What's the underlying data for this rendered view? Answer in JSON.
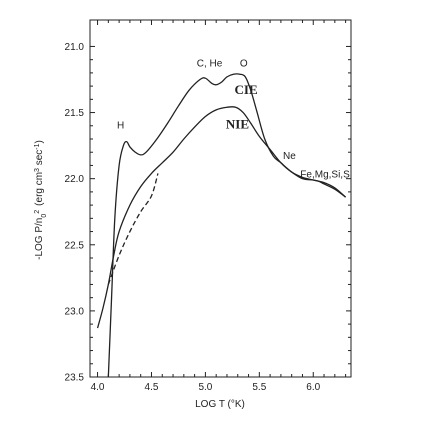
{
  "chart_data": {
    "type": "line",
    "title": "",
    "xlabel": "LOG T (°K)",
    "ylabel": "-LOG P/n",
    "ylabel_sub": "0",
    "ylabel_sup": "2",
    "ylabel_units": "(erg cm",
    "ylabel_units_sup1": "3",
    "ylabel_units_mid": " sec",
    "ylabel_units_sup2": "-1",
    "ylabel_units_end": ")",
    "xlim": [
      3.93,
      6.35
    ],
    "ylim": [
      23.5,
      20.8
    ],
    "y_inverted": true,
    "grid": false,
    "x_ticks": [
      "4.0",
      "4.5",
      "5.0",
      "5.5",
      "6.0"
    ],
    "x_tick_values": [
      4.0,
      4.5,
      5.0,
      5.5,
      6.0
    ],
    "y_ticks": [
      "21.0",
      "21.5",
      "22.0",
      "22.5",
      "23.0",
      "23.5"
    ],
    "y_tick_values": [
      21.0,
      21.5,
      22.0,
      22.5,
      23.0,
      23.5
    ],
    "series": [
      {
        "name": "CIE",
        "style": "solid",
        "x": [
          4.1,
          4.13,
          4.16,
          4.2,
          4.24,
          4.27,
          4.3,
          4.35,
          4.4,
          4.45,
          4.55,
          4.65,
          4.75,
          4.85,
          4.95,
          5.0,
          5.06,
          5.1,
          5.15,
          5.2,
          5.26,
          5.32,
          5.37,
          5.42,
          5.48,
          5.55,
          5.63,
          5.7,
          5.8,
          5.9,
          6.0,
          6.05,
          6.1,
          6.2,
          6.3
        ],
        "y": [
          23.55,
          22.9,
          22.3,
          21.9,
          21.75,
          21.72,
          21.76,
          21.8,
          21.82,
          21.8,
          21.7,
          21.58,
          21.45,
          21.33,
          21.25,
          21.24,
          21.28,
          21.29,
          21.27,
          21.23,
          21.21,
          21.21,
          21.23,
          21.33,
          21.5,
          21.7,
          21.83,
          21.88,
          21.95,
          22.0,
          22.01,
          22.02,
          22.04,
          22.08,
          22.14
        ]
      },
      {
        "name": "NIE",
        "style": "solid",
        "x": [
          4.0,
          4.05,
          4.1,
          4.15,
          4.2,
          4.3,
          4.4,
          4.5,
          4.6,
          4.7,
          4.8,
          4.9,
          5.0,
          5.1,
          5.2,
          5.28,
          5.35,
          5.42,
          5.5,
          5.6,
          5.7,
          5.8,
          5.9,
          6.0,
          6.1,
          6.2,
          6.3
        ],
        "y": [
          23.13,
          22.98,
          22.8,
          22.58,
          22.4,
          22.2,
          22.06,
          21.96,
          21.88,
          21.8,
          21.7,
          21.61,
          21.53,
          21.48,
          21.46,
          21.46,
          21.5,
          21.58,
          21.68,
          21.78,
          21.88,
          21.95,
          21.99,
          22.01,
          22.03,
          22.07,
          22.14
        ]
      },
      {
        "name": "",
        "style": "dashed",
        "x": [
          4.1,
          4.2,
          4.3,
          4.4,
          4.5,
          4.56
        ],
        "y": [
          22.8,
          22.58,
          22.4,
          22.25,
          22.13,
          21.96
        ]
      }
    ],
    "annotations": [
      {
        "text": "H",
        "x": 4.18,
        "y": 21.62,
        "style": "normal"
      },
      {
        "text": "C, He",
        "x": 4.92,
        "y": 21.15,
        "style": "normal"
      },
      {
        "text": "O",
        "x": 5.32,
        "y": 21.15,
        "style": "normal"
      },
      {
        "text": "CIE",
        "x": 5.27,
        "y": 21.36,
        "style": "bold"
      },
      {
        "text": "NIE",
        "x": 5.19,
        "y": 21.62,
        "style": "bold"
      },
      {
        "text": "Ne",
        "x": 5.72,
        "y": 21.85,
        "style": "normal"
      },
      {
        "text": "Fe,Mg,Si,S",
        "x": 5.88,
        "y": 21.99,
        "style": "normal"
      }
    ]
  }
}
